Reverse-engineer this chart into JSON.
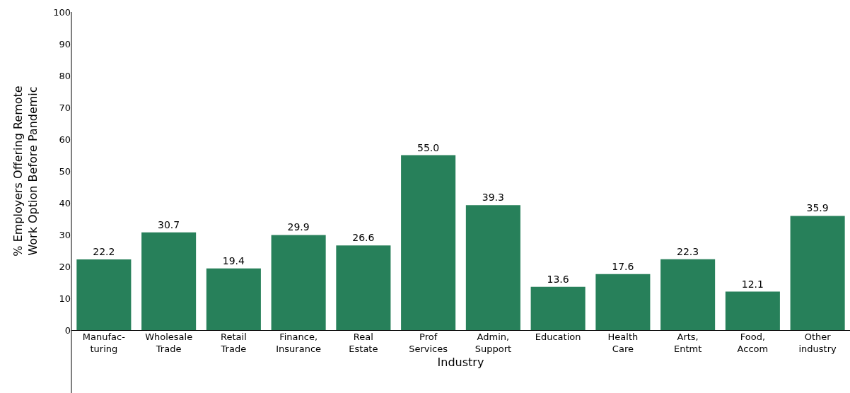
{
  "chart_data": {
    "type": "bar",
    "xlabel": "Industry",
    "ylabel": "% Employers Offering Remote\nWork Option Before Pandemic",
    "categories": [
      "Manufac-\nturing",
      "Wholesale\nTrade",
      "Retail\nTrade",
      "Finance,\nInsurance",
      "Real\nEstate",
      "Prof\nServices",
      "Admin,\nSupport",
      "Education",
      "Health\nCare",
      "Arts,\nEntmt",
      "Food,\nAccom",
      "Other\nindustry"
    ],
    "values": [
      22.2,
      30.7,
      19.4,
      29.9,
      26.6,
      55.0,
      39.3,
      13.6,
      17.6,
      22.3,
      12.1,
      35.9
    ],
    "value_labels": [
      "22.2",
      "30.7",
      "19.4",
      "29.9",
      "26.6",
      "55.0",
      "39.3",
      "13.6",
      "17.6",
      "22.3",
      "12.1",
      "35.9"
    ],
    "color": "#27805a",
    "ylim": [
      0,
      100
    ],
    "yticks": [
      0,
      10,
      20,
      30,
      40,
      50,
      60,
      70,
      80,
      90,
      100
    ]
  }
}
